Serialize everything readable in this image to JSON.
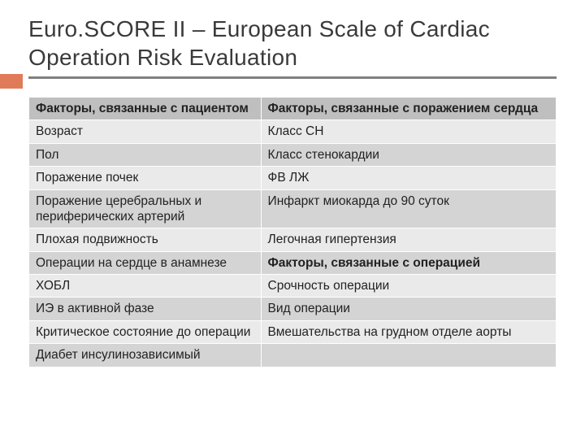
{
  "title": "Euro.SCORE II – European Scale of Cardiac Operation Risk Evaluation",
  "colors": {
    "accent": "#e07b5a",
    "underline": "#808080",
    "header_bg": "#bfbfbf",
    "row_light": "#eaeaea",
    "row_dark": "#d4d4d4",
    "text": "#222222",
    "title_text": "#3a3a3a"
  },
  "table": {
    "col_widths_pct": [
      44,
      56
    ],
    "rows": [
      {
        "shade": "hdr",
        "cells": [
          "Факторы, связанные с пациентом",
          "Факторы, связанные с поражением сердца"
        ]
      },
      {
        "shade": "light",
        "cells": [
          "Возраст",
          "Класс СН"
        ]
      },
      {
        "shade": "dark",
        "cells": [
          "Пол",
          "Класс стенокардии"
        ]
      },
      {
        "shade": "light",
        "cells": [
          "Поражение почек",
          "ФВ ЛЖ"
        ]
      },
      {
        "shade": "dark",
        "cells": [
          "Поражение  церебральных и периферических артерий",
          "Инфаркт миокарда до 90 суток"
        ]
      },
      {
        "shade": "light",
        "cells": [
          "Плохая подвижность",
          "Легочная гипертензия"
        ]
      },
      {
        "shade": "dark",
        "cells": [
          "Операции на сердце в анамнезе",
          "Факторы, связанные с операцией"
        ],
        "bold": [
          false,
          true
        ]
      },
      {
        "shade": "light",
        "cells": [
          "ХОБЛ",
          "Срочность операции"
        ]
      },
      {
        "shade": "dark",
        "cells": [
          "ИЭ в активной фазе",
          "Вид операции"
        ]
      },
      {
        "shade": "light",
        "cells": [
          "Критическое состояние до операции",
          "Вмешательства на грудном отделе аорты"
        ]
      },
      {
        "shade": "dark",
        "cells": [
          "Диабет инсулинозависимый",
          ""
        ]
      }
    ]
  }
}
